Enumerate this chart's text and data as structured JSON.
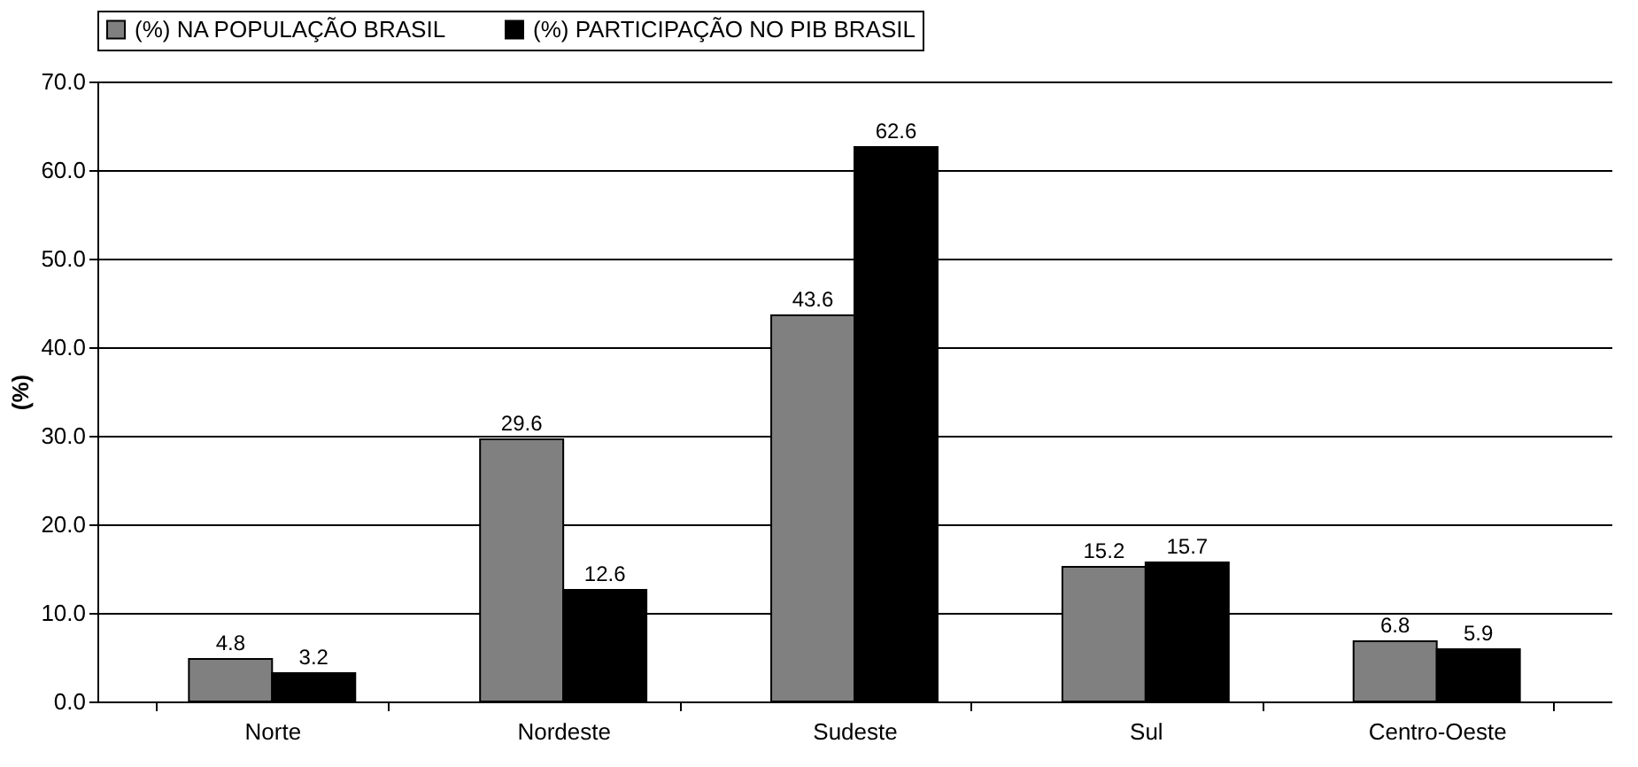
{
  "chart_data": {
    "type": "bar",
    "ylabel": "(%)",
    "categories": [
      "Norte",
      "Nordeste",
      "Sudeste",
      "Sul",
      "Centro-Oeste"
    ],
    "series": [
      {
        "name": "(%) NA POPULAÇÃO BRASIL",
        "color": "#808080",
        "values": [
          4.8,
          29.6,
          43.6,
          15.2,
          6.8
        ]
      },
      {
        "name": "(%) PARTICIPAÇÃO NO PIB BRASIL",
        "color": "#000000",
        "values": [
          3.2,
          12.6,
          62.6,
          15.7,
          5.9
        ]
      }
    ],
    "ylim": [
      0,
      70
    ],
    "yticks": [
      {
        "value": 0,
        "label": "0.0"
      },
      {
        "value": 10,
        "label": "10.0"
      },
      {
        "value": 20,
        "label": "20.0"
      },
      {
        "value": 30,
        "label": "30.0"
      },
      {
        "value": 40,
        "label": "40.0"
      },
      {
        "value": 50,
        "label": "50.0"
      },
      {
        "value": 60,
        "label": "60.0"
      },
      {
        "value": 70,
        "label": "70.0"
      }
    ],
    "grid": "y",
    "legend": "top",
    "data_labels": true
  }
}
